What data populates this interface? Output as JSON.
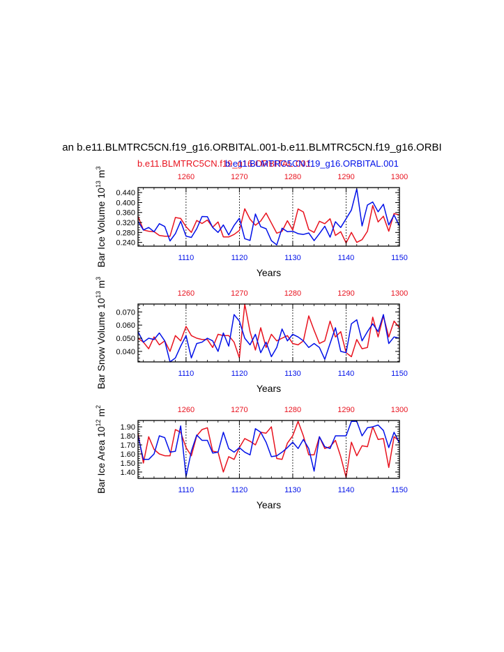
{
  "figure": {
    "main_title": "an b.e11.BLMTRC5CN.f19_g16.ORBITAL.001-b.e11.BLMTRC5CN.f19_g16.ORBI",
    "legend_red": "b.e11.BLMTRC5CN.f19_g16.ORBITAL.001",
    "legend_blue": "b.e11.BLMTRC5CN.f19_g16.ORBITAL.001",
    "colors": {
      "red": "#e8121e",
      "blue": "#0010e8",
      "axis": "#000000"
    }
  },
  "chart_data": [
    {
      "type": "line",
      "title": "",
      "xlabel": "Years",
      "ylabel": "Bar Ice Volume 10^13 m^3",
      "ylabel_base": "Bar Ice Volume 10",
      "ylabel_exp": "13",
      "ylabel_unit": "m",
      "ylabel_unit_exp": "3",
      "xlim": [
        1101,
        1150
      ],
      "ylim": [
        0.225,
        0.46
      ],
      "yticks": [
        0.24,
        0.28,
        0.32,
        0.36,
        0.4,
        0.44
      ],
      "ytick_labels": [
        "0.240",
        "0.280",
        "0.320",
        "0.360",
        "0.400",
        "0.440"
      ],
      "bottom_ticks": [
        1110,
        1120,
        1130,
        1140,
        1150
      ],
      "bottom_tick_labels": [
        "1110",
        "1120",
        "1130",
        "1140",
        "1150"
      ],
      "top_ticks": [
        1110,
        1120,
        1130,
        1140,
        1150
      ],
      "top_tick_labels": [
        "1260",
        "1270",
        "1280",
        "1290",
        "1300"
      ],
      "gridlines_x": [
        1110,
        1120,
        1130,
        1140
      ],
      "x": [
        1101,
        1102,
        1103,
        1104,
        1105,
        1106,
        1107,
        1108,
        1109,
        1110,
        1111,
        1112,
        1113,
        1114,
        1115,
        1116,
        1117,
        1118,
        1119,
        1120,
        1121,
        1122,
        1123,
        1124,
        1125,
        1126,
        1127,
        1128,
        1129,
        1130,
        1131,
        1132,
        1133,
        1134,
        1135,
        1136,
        1137,
        1138,
        1139,
        1140,
        1141,
        1142,
        1143,
        1144,
        1145,
        1146,
        1147,
        1148,
        1149,
        1150
      ],
      "series": [
        {
          "name": "b.e11.BLMTRC5CN.f19_g16.ORBITAL.001 (red)",
          "color": "red",
          "values": [
            0.345,
            0.29,
            0.285,
            0.283,
            0.268,
            0.265,
            0.265,
            0.34,
            0.336,
            0.303,
            0.28,
            0.328,
            0.316,
            0.33,
            0.301,
            0.322,
            0.262,
            0.262,
            0.272,
            0.288,
            0.375,
            0.333,
            0.309,
            0.326,
            0.358,
            0.318,
            0.277,
            0.285,
            0.327,
            0.29,
            0.374,
            0.362,
            0.292,
            0.28,
            0.325,
            0.315,
            0.335,
            0.268,
            0.283,
            0.238,
            0.28,
            0.24,
            0.251,
            0.285,
            0.388,
            0.322,
            0.345,
            0.285,
            0.356,
            0.35
          ]
        },
        {
          "name": "b.e11.BLMTRC5CN.f19_g16.ORBITAL.001 (blue)",
          "color": "blue",
          "values": [
            0.325,
            0.29,
            0.3,
            0.283,
            0.315,
            0.304,
            0.246,
            0.275,
            0.325,
            0.265,
            0.26,
            0.295,
            0.344,
            0.343,
            0.3,
            0.28,
            0.31,
            0.27,
            0.308,
            0.337,
            0.255,
            0.248,
            0.354,
            0.303,
            0.295,
            0.247,
            0.23,
            0.297,
            0.283,
            0.285,
            0.275,
            0.272,
            0.278,
            0.247,
            0.275,
            0.305,
            0.261,
            0.323,
            0.3,
            0.335,
            0.37,
            0.455,
            0.306,
            0.39,
            0.402,
            0.363,
            0.393,
            0.31,
            0.35,
            0.306
          ]
        }
      ]
    },
    {
      "type": "line",
      "title": "",
      "xlabel": "Years",
      "ylabel": "Bar Snow Volume 10^13 m^3",
      "ylabel_base": "Bar Snow Volume 10",
      "ylabel_exp": "13",
      "ylabel_unit": "m",
      "ylabel_unit_exp": "3",
      "xlim": [
        1101,
        1150
      ],
      "ylim": [
        0.032,
        0.076
      ],
      "yticks": [
        0.04,
        0.05,
        0.06,
        0.07
      ],
      "ytick_labels": [
        "0.040",
        "0.050",
        "0.060",
        "0.070"
      ],
      "bottom_ticks": [
        1110,
        1120,
        1130,
        1140,
        1150
      ],
      "bottom_tick_labels": [
        "1110",
        "1120",
        "1130",
        "1140",
        "1150"
      ],
      "top_ticks": [
        1110,
        1120,
        1130,
        1140,
        1150
      ],
      "top_tick_labels": [
        "1260",
        "1270",
        "1280",
        "1290",
        "1300"
      ],
      "gridlines_x": [
        1110,
        1120,
        1130,
        1140
      ],
      "x": [
        1101,
        1102,
        1103,
        1104,
        1105,
        1106,
        1107,
        1108,
        1109,
        1110,
        1111,
        1112,
        1113,
        1114,
        1115,
        1116,
        1117,
        1118,
        1119,
        1120,
        1121,
        1122,
        1123,
        1124,
        1125,
        1126,
        1127,
        1128,
        1129,
        1130,
        1131,
        1132,
        1133,
        1134,
        1135,
        1136,
        1137,
        1138,
        1139,
        1140,
        1141,
        1142,
        1143,
        1144,
        1145,
        1146,
        1147,
        1148,
        1149,
        1150
      ],
      "series": [
        {
          "name": "b.e11.BLMTRC5CN.f19_g16.ORBITAL.001 (red)",
          "color": "red",
          "values": [
            0.05,
            0.047,
            0.042,
            0.051,
            0.045,
            0.048,
            0.04,
            0.052,
            0.048,
            0.059,
            0.052,
            0.05,
            0.049,
            0.049,
            0.043,
            0.053,
            0.052,
            0.052,
            0.047,
            0.035,
            0.076,
            0.055,
            0.041,
            0.058,
            0.043,
            0.053,
            0.048,
            0.05,
            0.052,
            0.046,
            0.045,
            0.048,
            0.067,
            0.056,
            0.046,
            0.048,
            0.063,
            0.051,
            0.055,
            0.039,
            0.036,
            0.049,
            0.042,
            0.043,
            0.066,
            0.051,
            0.067,
            0.051,
            0.063,
            0.058
          ]
        },
        {
          "name": "b.e11.BLMTRC5CN.f19_g16.ORBITAL.001 (blue)",
          "color": "blue",
          "values": [
            0.055,
            0.047,
            0.05,
            0.049,
            0.054,
            0.048,
            0.032,
            0.035,
            0.044,
            0.052,
            0.035,
            0.046,
            0.047,
            0.05,
            0.048,
            0.04,
            0.054,
            0.044,
            0.068,
            0.063,
            0.05,
            0.045,
            0.053,
            0.039,
            0.047,
            0.036,
            0.043,
            0.057,
            0.048,
            0.053,
            0.051,
            0.048,
            0.043,
            0.046,
            0.043,
            0.034,
            0.046,
            0.058,
            0.04,
            0.039,
            0.061,
            0.064,
            0.048,
            0.055,
            0.061,
            0.055,
            0.068,
            0.046,
            0.051,
            0.05
          ]
        }
      ]
    },
    {
      "type": "line",
      "title": "",
      "xlabel": "Years",
      "ylabel": "Bar Ice Area 10^12 m^2",
      "ylabel_base": "Bar Ice Area 10",
      "ylabel_exp": "12",
      "ylabel_unit": "m",
      "ylabel_unit_exp": "2",
      "xlim": [
        1101,
        1150
      ],
      "ylim": [
        1.33,
        1.97
      ],
      "yticks": [
        1.4,
        1.5,
        1.6,
        1.7,
        1.8,
        1.9
      ],
      "ytick_labels": [
        "1.40",
        "1.50",
        "1.60",
        "1.70",
        "1.80",
        "1.90"
      ],
      "bottom_ticks": [
        1110,
        1120,
        1130,
        1140,
        1150
      ],
      "bottom_tick_labels": [
        "1110",
        "1120",
        "1130",
        "1140",
        "1150"
      ],
      "top_ticks": [
        1110,
        1120,
        1130,
        1140,
        1150
      ],
      "top_tick_labels": [
        "1260",
        "1270",
        "1280",
        "1290",
        "1300"
      ],
      "gridlines_x": [
        1110,
        1120,
        1130,
        1140
      ],
      "x": [
        1101,
        1102,
        1103,
        1104,
        1105,
        1106,
        1107,
        1108,
        1109,
        1110,
        1111,
        1112,
        1113,
        1114,
        1115,
        1116,
        1117,
        1118,
        1119,
        1120,
        1121,
        1122,
        1123,
        1124,
        1125,
        1126,
        1127,
        1128,
        1129,
        1130,
        1131,
        1132,
        1133,
        1134,
        1135,
        1136,
        1137,
        1138,
        1139,
        1140,
        1141,
        1142,
        1143,
        1144,
        1145,
        1146,
        1147,
        1148,
        1149,
        1150
      ],
      "series": [
        {
          "name": "b.e11.BLMTRC5CN.f19_g16.ORBITAL.001 (red)",
          "color": "red",
          "values": [
            1.83,
            1.5,
            1.79,
            1.65,
            1.6,
            1.58,
            1.58,
            1.87,
            1.84,
            1.67,
            1.58,
            1.8,
            1.87,
            1.89,
            1.63,
            1.62,
            1.4,
            1.57,
            1.54,
            1.67,
            1.77,
            1.74,
            1.7,
            1.84,
            1.83,
            1.9,
            1.55,
            1.54,
            1.72,
            1.8,
            1.96,
            1.8,
            1.59,
            1.59,
            1.79,
            1.66,
            1.68,
            1.75,
            1.57,
            1.34,
            1.73,
            1.58,
            1.69,
            1.68,
            1.9,
            1.76,
            1.77,
            1.45,
            1.79,
            1.74
          ]
        },
        {
          "name": "b.e11.BLMTRC5CN.f19_g16.ORBITAL.001 (blue)",
          "color": "blue",
          "values": [
            1.8,
            1.54,
            1.54,
            1.6,
            1.8,
            1.78,
            1.62,
            1.63,
            1.91,
            1.35,
            1.63,
            1.81,
            1.75,
            1.75,
            1.61,
            1.62,
            1.84,
            1.66,
            1.62,
            1.67,
            1.62,
            1.59,
            1.88,
            1.84,
            1.73,
            1.57,
            1.58,
            1.62,
            1.67,
            1.73,
            1.66,
            1.76,
            1.66,
            1.41,
            1.79,
            1.68,
            1.66,
            1.8,
            1.8,
            1.8,
            1.96,
            1.96,
            1.8,
            1.89,
            1.9,
            1.92,
            1.86,
            1.67,
            1.84,
            1.72
          ]
        }
      ]
    }
  ]
}
